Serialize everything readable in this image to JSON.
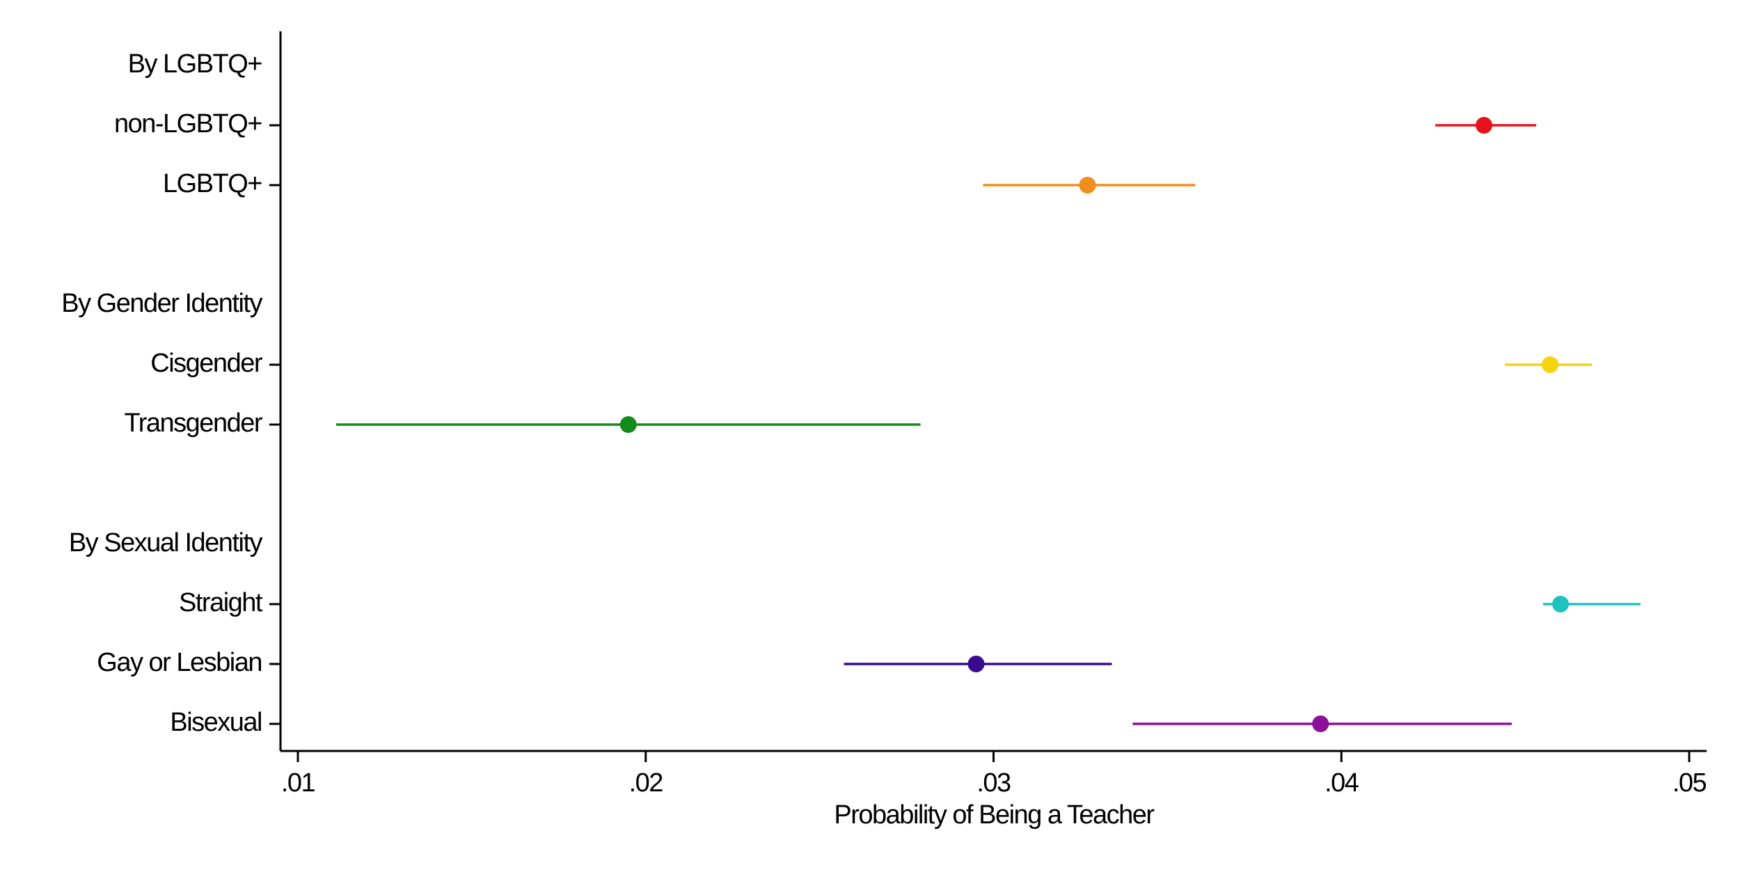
{
  "chart_data": {
    "type": "errorbar",
    "x_label": "Probability of Being a Teacher",
    "categories": [
      "By LGBTQ+",
      "non-LGBTQ+",
      "LGBTQ+",
      null,
      "By Gender Identity",
      "Cisgender",
      "Transgender",
      null,
      "By Sexual Identity",
      "Straight",
      "Gay or Lesbian",
      "Bisexual"
    ],
    "values": [
      null,
      0.0441,
      0.0327,
      null,
      null,
      0.046,
      0.0195,
      null,
      null,
      0.0463,
      0.0295,
      0.0394
    ],
    "lower": [
      null,
      0.0427,
      0.0297,
      null,
      null,
      0.0447,
      0.0111,
      null,
      null,
      0.0458,
      0.0257,
      0.034
    ],
    "upper": [
      null,
      0.0456,
      0.0358,
      null,
      null,
      0.0472,
      0.0279,
      null,
      null,
      0.0486,
      0.0334,
      0.0449
    ],
    "colors": [
      null,
      "#e8101a",
      "#f28c1c",
      null,
      null,
      "#f5d311",
      "#138a1a",
      null,
      null,
      "#1fc1c1",
      "#3a0a8f",
      "#8a1198"
    ],
    "xlim": [
      0.0095,
      0.0505
    ],
    "xticks": [
      {
        "value": 0.01,
        "label": ".01"
      },
      {
        "value": 0.02,
        "label": ".02"
      },
      {
        "value": 0.03,
        "label": ".03"
      },
      {
        "value": 0.04,
        "label": ".04"
      },
      {
        "value": 0.05,
        "label": ".05"
      }
    ]
  }
}
